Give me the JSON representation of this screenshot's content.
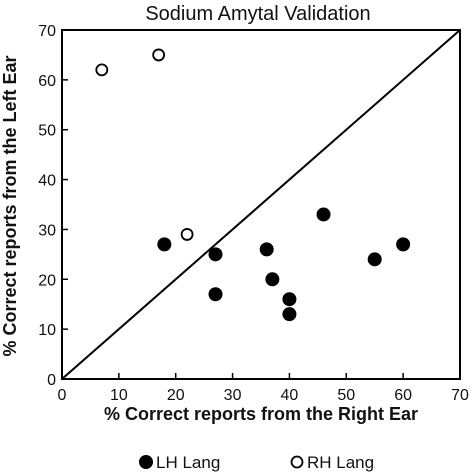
{
  "chart_data": {
    "type": "scatter",
    "title": "Sodium Amytal Validation",
    "xlabel": "% Correct reports from the Right Ear",
    "ylabel": "% Correct reports from the Left Ear",
    "xlim": [
      0,
      70
    ],
    "ylim": [
      0,
      70
    ],
    "x_ticks": [
      0,
      10,
      20,
      30,
      40,
      50,
      60,
      70
    ],
    "y_ticks": [
      0,
      10,
      20,
      30,
      40,
      50,
      60,
      70
    ],
    "grid": false,
    "reference_line": {
      "from": [
        0,
        0
      ],
      "to": [
        70,
        70
      ]
    },
    "legend_position": "bottom",
    "series": [
      {
        "name": "LH Lang",
        "marker": "filled-circle",
        "color": "#000000",
        "points": [
          {
            "x": 18,
            "y": 27
          },
          {
            "x": 27,
            "y": 25
          },
          {
            "x": 27,
            "y": 17
          },
          {
            "x": 36,
            "y": 26
          },
          {
            "x": 37,
            "y": 20
          },
          {
            "x": 40,
            "y": 16
          },
          {
            "x": 40,
            "y": 13
          },
          {
            "x": 46,
            "y": 33
          },
          {
            "x": 55,
            "y": 24
          },
          {
            "x": 60,
            "y": 27
          }
        ]
      },
      {
        "name": "RH Lang",
        "marker": "open-circle",
        "color": "#000000",
        "points": [
          {
            "x": 7,
            "y": 62
          },
          {
            "x": 17,
            "y": 65
          },
          {
            "x": 22,
            "y": 29
          }
        ]
      }
    ]
  }
}
